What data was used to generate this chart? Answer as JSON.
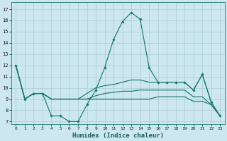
{
  "xlabel": "Humidex (Indice chaleur)",
  "bg_color": "#cce8ee",
  "grid_color": "#aacccc",
  "line_color": "#1a7a6e",
  "xlim": [
    -0.5,
    23.5
  ],
  "ylim": [
    6.8,
    17.6
  ],
  "yticks": [
    7,
    8,
    9,
    10,
    11,
    12,
    13,
    14,
    15,
    16,
    17
  ],
  "xticks": [
    0,
    1,
    2,
    3,
    4,
    5,
    6,
    7,
    8,
    9,
    10,
    11,
    12,
    13,
    14,
    15,
    16,
    17,
    18,
    19,
    20,
    21,
    22,
    23
  ],
  "ymax": [
    12,
    9,
    9.5,
    9.5,
    7.5,
    7.5,
    7,
    7,
    8.5,
    9.8,
    11.8,
    14.3,
    15.9,
    16.7,
    16.1,
    11.8,
    10.5,
    10.5,
    10.5,
    10.5,
    9.8,
    11.2,
    8.7,
    7.5
  ],
  "ymid1": [
    12,
    9,
    9.5,
    9.5,
    9,
    9,
    9,
    9,
    9.5,
    10,
    10.2,
    10.3,
    10.5,
    10.7,
    10.7,
    10.5,
    10.5,
    10.5,
    10.5,
    10.5,
    9.8,
    11.2,
    8.7,
    7.5
  ],
  "ymid2": [
    12,
    9,
    9.5,
    9.5,
    9,
    9,
    9,
    9,
    9,
    9.3,
    9.5,
    9.6,
    9.7,
    9.7,
    9.8,
    9.8,
    9.8,
    9.8,
    9.8,
    9.8,
    9.2,
    9.2,
    8.5,
    7.5
  ],
  "ymin": [
    12,
    9,
    9.5,
    9.5,
    9,
    9,
    9,
    9,
    9,
    9,
    9,
    9,
    9,
    9,
    9,
    9,
    9.2,
    9.2,
    9.2,
    9.2,
    8.8,
    8.8,
    8.5,
    7.5
  ]
}
